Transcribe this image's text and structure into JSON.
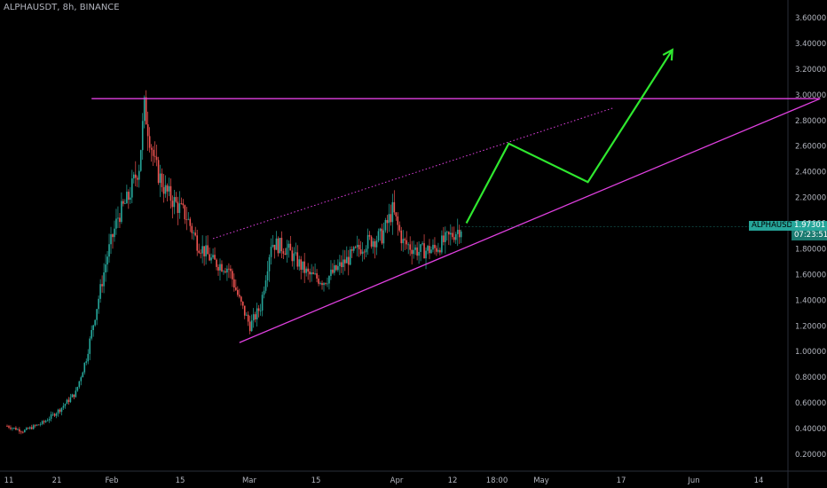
{
  "header": {
    "symbol_info": "ALPHAUSDT, 8h, BINANCE"
  },
  "price_tag": {
    "symbol": "ALPHAUSDT",
    "price": "1.97301",
    "timer": "07:23:51"
  },
  "colors": {
    "background": "#000000",
    "up": "#26a69a",
    "down": "#ef5350",
    "annotation_magenta": "#e040e0",
    "projection_green": "#2fe82f",
    "axis_text": "#b2b5be"
  },
  "chart_data": {
    "type": "candlestick",
    "title": "",
    "xlabel": "",
    "ylabel": "",
    "ylim": [
      0.08,
      3.72
    ],
    "yticks": [
      "3.60000",
      "3.40000",
      "3.20000",
      "3.00000",
      "2.80000",
      "2.60000",
      "2.40000",
      "2.20000",
      "2.00000",
      "1.80000",
      "1.60000",
      "1.40000",
      "1.20000",
      "1.00000",
      "0.80000",
      "0.60000",
      "0.40000",
      "0.20000"
    ],
    "xticks": [
      "11",
      "21",
      "Feb",
      "15",
      "Mar",
      "15",
      "Apr",
      "12",
      "18:00",
      "May",
      "17",
      "Jun",
      "14"
    ],
    "grid": false,
    "price_path": [
      {
        "date": "Jan 11",
        "close": 0.42
      },
      {
        "date": "Jan 14",
        "close": 0.38
      },
      {
        "date": "Jan 18",
        "close": 0.45
      },
      {
        "date": "Jan 21",
        "close": 0.55
      },
      {
        "date": "Jan 24",
        "close": 0.68
      },
      {
        "date": "Jan 26",
        "close": 0.95
      },
      {
        "date": "Jan 28",
        "close": 1.35
      },
      {
        "date": "Jan 30",
        "close": 1.75
      },
      {
        "date": "Feb 1",
        "close": 2.05
      },
      {
        "date": "Feb 3",
        "close": 2.2
      },
      {
        "date": "Feb 5",
        "close": 2.45
      },
      {
        "date": "Feb 6",
        "close": 2.9
      },
      {
        "date": "Feb 8",
        "close": 2.45
      },
      {
        "date": "Feb 10",
        "close": 2.25
      },
      {
        "date": "Feb 12",
        "close": 2.15
      },
      {
        "date": "Feb 14",
        "close": 2.05
      },
      {
        "date": "Feb 16",
        "close": 1.85
      },
      {
        "date": "Feb 19",
        "close": 1.7
      },
      {
        "date": "Feb 22",
        "close": 1.65
      },
      {
        "date": "Feb 24",
        "close": 1.4
      },
      {
        "date": "Feb 26",
        "close": 1.2
      },
      {
        "date": "Feb 28",
        "close": 1.35
      },
      {
        "date": "Mar 2",
        "close": 1.85
      },
      {
        "date": "Mar 5",
        "close": 1.8
      },
      {
        "date": "Mar 9",
        "close": 1.6
      },
      {
        "date": "Mar 12",
        "close": 1.55
      },
      {
        "date": "Mar 16",
        "close": 1.7
      },
      {
        "date": "Mar 20",
        "close": 1.85
      },
      {
        "date": "Mar 23",
        "close": 1.9
      },
      {
        "date": "Mar 25",
        "close": 2.1
      },
      {
        "date": "Mar 27",
        "close": 1.85
      },
      {
        "date": "Mar 30",
        "close": 1.78
      },
      {
        "date": "Apr 2",
        "close": 1.8
      },
      {
        "date": "Apr 5",
        "close": 1.9
      },
      {
        "date": "Apr 7",
        "close": 1.97
      }
    ],
    "annotations": {
      "resistance": {
        "price": 2.97,
        "from": "Jan 27",
        "to": "Jun 14"
      },
      "support": {
        "from": {
          "date": "Feb 24",
          "price": 1.07
        },
        "to": {
          "date": "Jun 14",
          "price": 2.97
        }
      },
      "dotted_channel": {
        "from": {
          "date": "Feb 19",
          "price": 1.88
        },
        "to": {
          "date": "May 6",
          "price": 2.9
        }
      },
      "projection": [
        {
          "date": "Apr 8",
          "price": 2.0
        },
        {
          "date": "Apr 16",
          "price": 2.62
        },
        {
          "date": "May 1",
          "price": 2.32
        },
        {
          "date": "May 17",
          "price": 3.35
        }
      ]
    }
  }
}
